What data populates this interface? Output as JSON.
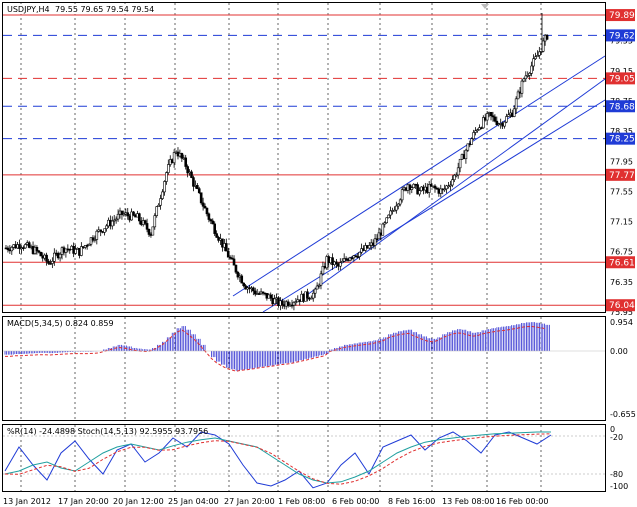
{
  "main": {
    "header": {
      "symbol": "USDJPY,H4",
      "ohlc": "79.55 79.65 79.54 79.54"
    },
    "y_ticks": [
      "79.55",
      "79.15",
      "78.75",
      "78.35",
      "77.95",
      "77.55",
      "77.15",
      "76.75",
      "76.35",
      "75.95"
    ],
    "levels": [
      {
        "label": "79.89",
        "price": 79.89,
        "style": "solid",
        "color": "#e03030"
      },
      {
        "label": "79.62",
        "price": 79.62,
        "style": "dash",
        "color": "#1f3bd6"
      },
      {
        "label": "79.05",
        "price": 79.05,
        "style": "dash",
        "color": "#e03030"
      },
      {
        "label": "78.68",
        "price": 78.68,
        "style": "dash",
        "color": "#1f3bd6"
      },
      {
        "label": "78.25",
        "price": 78.25,
        "style": "dash",
        "color": "#1f3bd6"
      },
      {
        "label": "77.77",
        "price": 77.77,
        "style": "solid",
        "color": "#e03030"
      },
      {
        "label": "76.61",
        "price": 76.61,
        "style": "solid",
        "color": "#e03030"
      },
      {
        "label": "76.04",
        "price": 76.04,
        "style": "solid",
        "color": "#e03030"
      }
    ]
  },
  "macd": {
    "header": "MACD(5,34,5) 0.824 0.859",
    "ticks": [
      "0.954",
      "0.00",
      "-0.655"
    ]
  },
  "stoch": {
    "header": "%R(14) -24.4898  Stoch(14,5,13) 92.5955 93.7956",
    "ticks": [
      "0",
      "-20",
      "-80",
      "-100"
    ]
  },
  "x_labels": [
    "13 Jan 2012",
    "17 Jan 20:00",
    "20 Jan 12:00",
    "25 Jan 04:00",
    "27 Jan 20:00",
    "1 Feb 08:00",
    "6 Feb 00:00",
    "8 Feb 16:00",
    "13 Feb 08:00",
    "16 Feb 00:00"
  ],
  "colors": {
    "bull": "#ffffff",
    "bear": "#000000",
    "channel": "#1f3bd6",
    "macd": "#3030d0",
    "signal": "#e03030",
    "wpr": "#1f3bd6",
    "stoch_main": "#20a0a0",
    "stoch_signal": "#e03030"
  },
  "chart_data": {
    "type": "candlestick",
    "title": "USDJPY,H4",
    "ylim": [
      75.95,
      80.05
    ],
    "close_path": [
      [
        0,
        76.8
      ],
      [
        8,
        76.85
      ],
      [
        16,
        76.75
      ],
      [
        22,
        76.6
      ],
      [
        30,
        76.8
      ],
      [
        38,
        76.75
      ],
      [
        45,
        76.95
      ],
      [
        52,
        77.1
      ],
      [
        60,
        77.25
      ],
      [
        68,
        77.2
      ],
      [
        75,
        77.0
      ],
      [
        83,
        77.8
      ],
      [
        88,
        78.1
      ],
      [
        93,
        77.9
      ],
      [
        98,
        77.6
      ],
      [
        105,
        77.2
      ],
      [
        112,
        76.85
      ],
      [
        118,
        76.55
      ],
      [
        124,
        76.3
      ],
      [
        130,
        76.2
      ],
      [
        136,
        76.15
      ],
      [
        142,
        76.05
      ],
      [
        148,
        76.1
      ],
      [
        154,
        76.15
      ],
      [
        160,
        76.2
      ],
      [
        166,
        76.65
      ],
      [
        172,
        76.55
      ],
      [
        178,
        76.7
      ],
      [
        184,
        76.75
      ],
      [
        190,
        76.85
      ],
      [
        196,
        77.1
      ],
      [
        202,
        77.4
      ],
      [
        208,
        77.65
      ],
      [
        214,
        77.55
      ],
      [
        220,
        77.6
      ],
      [
        226,
        77.55
      ],
      [
        232,
        77.75
      ],
      [
        238,
        78.1
      ],
      [
        244,
        78.4
      ],
      [
        250,
        78.55
      ],
      [
        256,
        78.45
      ],
      [
        262,
        78.6
      ],
      [
        268,
        79.05
      ],
      [
        274,
        79.3
      ],
      [
        280,
        79.62
      ]
    ],
    "macd_histogram": [
      -0.12,
      -0.12,
      -0.1,
      -0.1,
      -0.09,
      -0.08,
      -0.07,
      -0.06,
      -0.06,
      -0.07,
      -0.06,
      -0.05,
      -0.04,
      -0.03,
      -0.02,
      -0.02,
      -0.02,
      -0.02,
      -0.01,
      0.0,
      0.05,
      0.1,
      0.15,
      0.2,
      0.18,
      0.15,
      0.1,
      0.08,
      0.06,
      0.05,
      0.1,
      0.2,
      0.3,
      0.45,
      0.6,
      0.75,
      0.82,
      0.7,
      0.55,
      0.4,
      0.2,
      0.0,
      -0.2,
      -0.35,
      -0.45,
      -0.55,
      -0.6,
      -0.65,
      -0.62,
      -0.6,
      -0.58,
      -0.55,
      -0.52,
      -0.5,
      -0.48,
      -0.45,
      -0.42,
      -0.4,
      -0.38,
      -0.34,
      -0.3,
      -0.26,
      -0.22,
      -0.18,
      -0.14,
      -0.1,
      0.05,
      0.1,
      0.15,
      0.2,
      0.22,
      0.25,
      0.28,
      0.3,
      0.32,
      0.35,
      0.4,
      0.45,
      0.55,
      0.6,
      0.65,
      0.68,
      0.7,
      0.62,
      0.55,
      0.48,
      0.42,
      0.4,
      0.45,
      0.55,
      0.62,
      0.68,
      0.72,
      0.7,
      0.65,
      0.6,
      0.62,
      0.68,
      0.72,
      0.75,
      0.78,
      0.8,
      0.82,
      0.85,
      0.88,
      0.92,
      0.94,
      0.95,
      0.93,
      0.9,
      0.86
    ],
    "stoch_main": [
      -75,
      -70,
      -60,
      -55,
      -65,
      -70,
      -55,
      -40,
      -30,
      -25,
      -30,
      -35,
      -28,
      -22,
      -18,
      -15,
      -20,
      -25,
      -30,
      -45,
      -60,
      -75,
      -85,
      -90,
      -88,
      -80,
      -70,
      -55,
      -40,
      -30,
      -22,
      -18,
      -15,
      -12,
      -10,
      -8,
      -7,
      -6,
      -5,
      -5
    ],
    "wpr": [
      -70,
      -30,
      -60,
      -85,
      -40,
      -20,
      -50,
      -75,
      -35,
      -25,
      -55,
      -40,
      -15,
      -30,
      -5,
      -10,
      -25,
      -60,
      -90,
      -95,
      -85,
      -70,
      -98,
      -90,
      -60,
      -40,
      -75,
      -30,
      -20,
      -10,
      -35,
      -15,
      -5,
      -20,
      -40,
      -10,
      -5,
      -15,
      -25,
      -10
    ]
  }
}
